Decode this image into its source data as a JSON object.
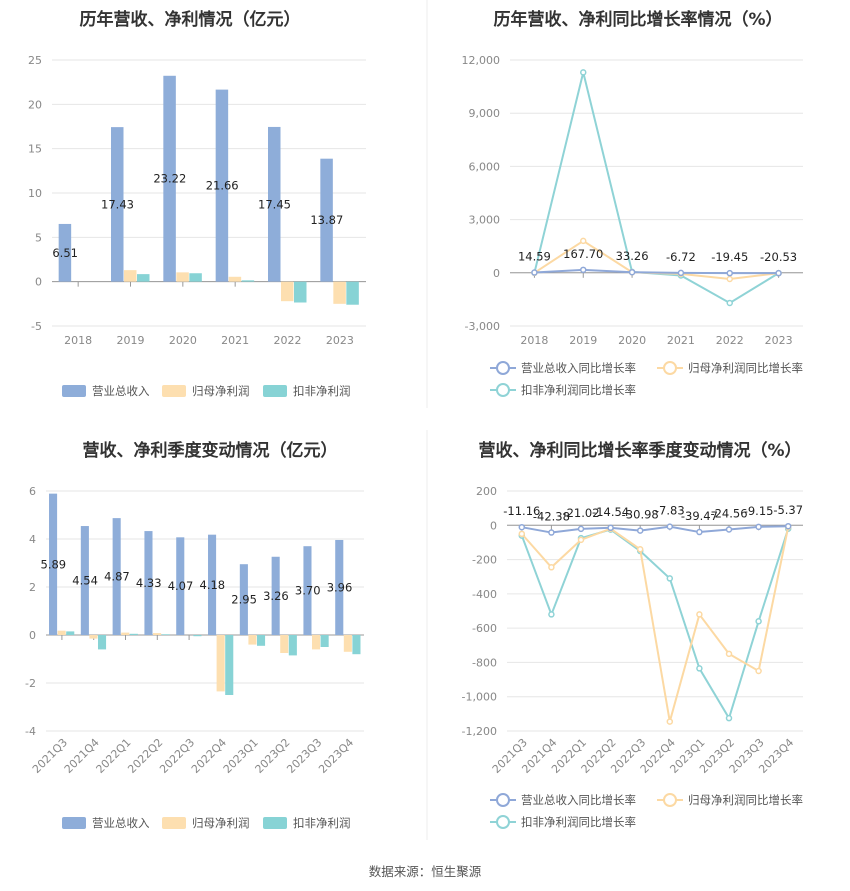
{
  "source": "数据来源：恒生聚源",
  "colors": {
    "revenue": "#8eadd9",
    "parent_profit": "#fddfb0",
    "deducted_profit": "#87d3d5",
    "rev_line": "#8fa8d8",
    "parent_line": "#fcd9a3",
    "deducted_line": "#8fd3d6",
    "grid": "#e6e6e6",
    "axis": "#999999"
  },
  "chart_data": [
    {
      "type": "bar",
      "title": "历年营收、净利情况（亿元）",
      "categories": [
        "2018",
        "2019",
        "2020",
        "2021",
        "2022",
        "2023"
      ],
      "series": [
        {
          "name": "营业总收入",
          "values": [
            6.51,
            17.43,
            23.22,
            21.66,
            17.45,
            13.87
          ]
        },
        {
          "name": "归母净利润",
          "values": [
            0.0,
            1.3,
            1.05,
            0.55,
            -2.2,
            -2.5
          ]
        },
        {
          "name": "扣非净利润",
          "values": [
            0.0,
            0.85,
            0.95,
            0.15,
            -2.35,
            -2.6
          ]
        }
      ],
      "data_labels": [
        "6.51",
        "17.43",
        "23.22",
        "21.66",
        "17.45",
        "13.87"
      ],
      "yticks": [
        "25",
        "20",
        "15",
        "10",
        "5",
        "0",
        "-5"
      ],
      "ylim": [
        -5,
        25
      ],
      "legend": "bottom",
      "grid": true
    },
    {
      "type": "line",
      "title": "历年营收、净利同比增长率情况（%）",
      "categories": [
        "2018",
        "2019",
        "2020",
        "2021",
        "2022",
        "2023"
      ],
      "series": [
        {
          "name": "营业总收入同比增长率",
          "values": [
            14.59,
            167.7,
            33.26,
            -6.72,
            -19.45,
            -20.53
          ]
        },
        {
          "name": "归母净利润同比增长率",
          "values": [
            0,
            1800,
            30,
            -60,
            -350,
            -20
          ]
        },
        {
          "name": "扣非净利润同比增长率",
          "values": [
            0,
            11300,
            50,
            -150,
            -1700,
            -20
          ]
        }
      ],
      "data_labels": [
        "14.59",
        "167.70",
        "33.26",
        "-6.72",
        "-19.45",
        "-20.53"
      ],
      "yticks": [
        "12,000",
        "9,000",
        "6,000",
        "3,000",
        "0",
        "-3,000"
      ],
      "ylim": [
        -3000,
        12000
      ],
      "legend": "bottom",
      "grid": true
    },
    {
      "type": "bar",
      "title": "营收、净利季度变动情况（亿元）",
      "categories": [
        "2021Q3",
        "2021Q4",
        "2022Q1",
        "2022Q2",
        "2022Q3",
        "2022Q4",
        "2023Q1",
        "2023Q2",
        "2023Q3",
        "2023Q4"
      ],
      "series": [
        {
          "name": "营业总收入",
          "values": [
            5.89,
            4.54,
            4.87,
            4.33,
            4.07,
            4.18,
            2.95,
            3.26,
            3.7,
            3.96
          ]
        },
        {
          "name": "归母净利润",
          "values": [
            0.18,
            -0.15,
            0.1,
            0.08,
            0.0,
            -2.35,
            -0.4,
            -0.75,
            -0.6,
            -0.7
          ]
        },
        {
          "name": "扣非净利润",
          "values": [
            0.15,
            -0.6,
            0.05,
            0.03,
            -0.05,
            -2.5,
            -0.45,
            -0.85,
            -0.5,
            -0.8
          ]
        }
      ],
      "data_labels": [
        "5.89",
        "4.54",
        "4.87",
        "4.33",
        "4.07",
        "4.18",
        "2.95",
        "3.26",
        "3.70",
        "3.96"
      ],
      "yticks": [
        "6",
        "4",
        "2",
        "0",
        "-2",
        "-4"
      ],
      "ylim": [
        -4,
        6
      ],
      "legend": "bottom",
      "grid": true
    },
    {
      "type": "line",
      "title": "营收、净利同比增长率季度变动情况（%）",
      "categories": [
        "2021Q3",
        "2021Q4",
        "2022Q1",
        "2022Q2",
        "2022Q3",
        "2022Q4",
        "2023Q1",
        "2023Q2",
        "2023Q3",
        "2023Q4"
      ],
      "series": [
        {
          "name": "营业总收入同比增长率",
          "values": [
            -11.16,
            -42.38,
            -21.02,
            -14.54,
            -30.98,
            -7.83,
            -39.47,
            -24.56,
            -9.15,
            -5.37
          ]
        },
        {
          "name": "归母净利润同比增长率",
          "values": [
            -50,
            -245,
            -85,
            -20,
            -140,
            -1145,
            -520,
            -750,
            -850,
            -10
          ]
        },
        {
          "name": "扣非净利润同比增长率",
          "values": [
            -60,
            -520,
            -75,
            -25,
            -150,
            -310,
            -835,
            -1125,
            -560,
            -20
          ]
        }
      ],
      "data_labels": [
        "-11.16",
        "-42.38",
        "-21.02",
        "-14.54",
        "-30.98",
        "-7.83",
        "-39.47",
        "-24.56",
        "-9.15",
        "-5.37"
      ],
      "yticks": [
        "200",
        "0",
        "-200",
        "-400",
        "-600",
        "-800",
        "-1,000",
        "-1,200"
      ],
      "ylim": [
        -1200,
        200
      ],
      "legend": "bottom",
      "grid": true
    }
  ]
}
